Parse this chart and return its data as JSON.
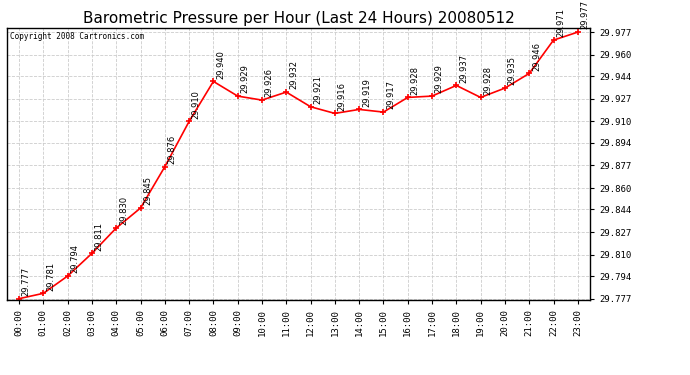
{
  "title": "Barometric Pressure per Hour (Last 24 Hours) 20080512",
  "copyright": "Copyright 2008 Cartronics.com",
  "hours": [
    "00:00",
    "01:00",
    "02:00",
    "03:00",
    "04:00",
    "05:00",
    "06:00",
    "07:00",
    "08:00",
    "09:00",
    "10:00",
    "11:00",
    "12:00",
    "13:00",
    "14:00",
    "15:00",
    "16:00",
    "17:00",
    "18:00",
    "19:00",
    "20:00",
    "21:00",
    "22:00",
    "23:00"
  ],
  "values": [
    29.777,
    29.781,
    29.794,
    29.811,
    29.83,
    29.845,
    29.876,
    29.91,
    29.94,
    29.929,
    29.926,
    29.932,
    29.921,
    29.916,
    29.919,
    29.917,
    29.928,
    29.929,
    29.937,
    29.928,
    29.935,
    29.946,
    29.971,
    29.977
  ],
  "ylim_min": 29.777,
  "ylim_max": 29.977,
  "yticks": [
    29.777,
    29.794,
    29.81,
    29.827,
    29.844,
    29.86,
    29.877,
    29.894,
    29.91,
    29.927,
    29.944,
    29.96,
    29.977
  ],
  "line_color": "red",
  "marker_color": "red",
  "background_color": "#ffffff",
  "grid_color": "#cccccc",
  "title_fontsize": 11,
  "tick_fontsize": 6.5,
  "annotation_fontsize": 6.0
}
